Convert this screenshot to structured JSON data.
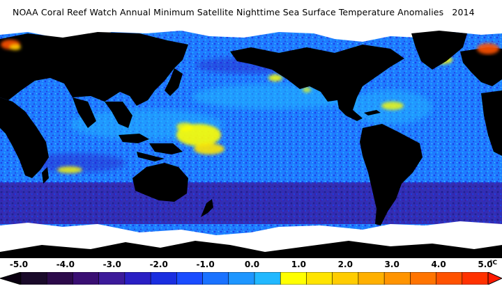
{
  "title": {
    "text": "NOAA Coral Reef Watch Annual Minimum Satellite Nighttime Sea Surface Temperature Anomalies",
    "year": "2014"
  },
  "colors": {
    "land": "#000000",
    "ice": "#ffffff",
    "ocean_base": "#1e8cff",
    "colorbar": [
      "#1a0a2a",
      "#2c0a4a",
      "#3a0f73",
      "#3c1a9a",
      "#2a1fc4",
      "#1a2ee0",
      "#1a4cff",
      "#1a72ff",
      "#1e96ff",
      "#22b8ff",
      "#ffff00",
      "#ffe400",
      "#ffcc00",
      "#ffb000",
      "#ff9400",
      "#ff7400",
      "#ff5200",
      "#ff3200"
    ]
  },
  "legend": {
    "ticks": [
      "-5.0",
      "-4.0",
      "-3.0",
      "-2.0",
      "-1.0",
      "0.0",
      "1.0",
      "2.0",
      "3.0",
      "4.0",
      "5.0"
    ],
    "unit": "°C",
    "range": [
      -5,
      5
    ]
  }
}
